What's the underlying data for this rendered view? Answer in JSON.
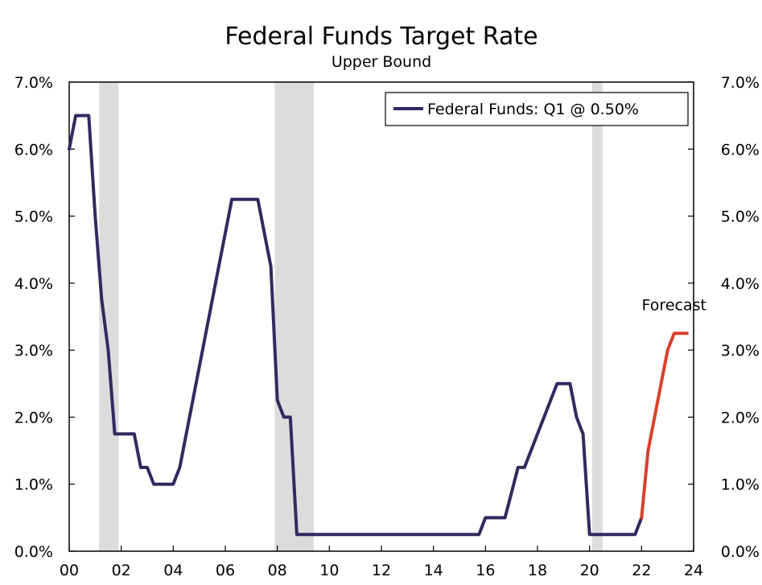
{
  "chart_data": {
    "type": "line",
    "title": "Federal Funds Target Rate",
    "subtitle": "Upper Bound",
    "xlabel": "",
    "ylabel": "",
    "xlim": [
      2000,
      2024
    ],
    "ylim": [
      0,
      7
    ],
    "y_ticks": [
      0,
      1,
      2,
      3,
      4,
      5,
      6,
      7
    ],
    "y_tick_labels": [
      "0.0%",
      "1.0%",
      "2.0%",
      "3.0%",
      "4.0%",
      "5.0%",
      "6.0%",
      "7.0%"
    ],
    "x_ticks": [
      2000,
      2002,
      2004,
      2006,
      2008,
      2010,
      2012,
      2014,
      2016,
      2018,
      2020,
      2022,
      2024
    ],
    "x_tick_labels": [
      "00",
      "02",
      "04",
      "06",
      "08",
      "10",
      "12",
      "14",
      "16",
      "18",
      "20",
      "22",
      "24"
    ],
    "recessions": [
      [
        2001.15,
        2001.9
      ],
      [
        2007.9,
        2009.4
      ],
      [
        2020.1,
        2020.5
      ]
    ],
    "legend_position": "top-right",
    "series": [
      {
        "name": "Federal Funds: Q1 @ 0.50%",
        "color": "#35285f",
        "x": [
          2000.0,
          2000.25,
          2000.75,
          2001.0,
          2001.25,
          2001.5,
          2001.75,
          2002.0,
          2002.5,
          2002.75,
          2003.0,
          2003.25,
          2003.5,
          2004.0,
          2004.25,
          2006.25,
          2006.5,
          2007.25,
          2007.75,
          2008.0,
          2008.25,
          2008.5,
          2008.75,
          2009.0,
          2015.75,
          2016.0,
          2016.75,
          2017.25,
          2017.5,
          2018.75,
          2019.0,
          2019.25,
          2019.5,
          2019.75,
          2020.0,
          2020.25,
          2021.75,
          2022.0
        ],
        "values": [
          6.0,
          6.5,
          6.5,
          5.0,
          3.75,
          3.0,
          1.75,
          1.75,
          1.75,
          1.25,
          1.25,
          1.0,
          1.0,
          1.0,
          1.25,
          5.25,
          5.25,
          5.25,
          4.25,
          2.25,
          2.0,
          2.0,
          0.25,
          0.25,
          0.25,
          0.5,
          0.5,
          1.25,
          1.25,
          2.5,
          2.5,
          2.5,
          2.0,
          1.75,
          0.25,
          0.25,
          0.25,
          0.5
        ]
      },
      {
        "name": "Forecast",
        "color": "#d8402a",
        "x": [
          2022.0,
          2022.25,
          2022.75,
          2023.0,
          2023.25,
          2023.75
        ],
        "values": [
          0.5,
          1.5,
          2.5,
          3.0,
          3.25,
          3.25
        ]
      }
    ],
    "annotations": [
      {
        "text": "Forecast",
        "x": 2023.25,
        "y": 3.5
      }
    ]
  }
}
